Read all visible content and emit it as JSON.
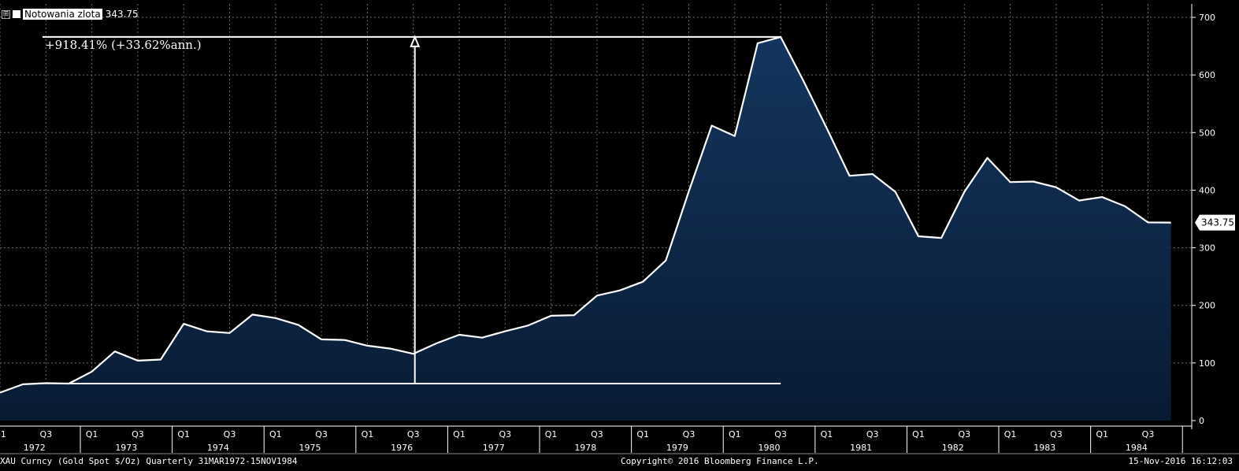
{
  "legend": {
    "toggle": "⊞",
    "series_name": "Notowania zlota",
    "last_value": "343.75"
  },
  "annotation": {
    "change_text": "+918.41% (+33.62%ann.)"
  },
  "footer": {
    "left": "XAU Curncy (Gold Spot  $/Oz)  Quarterly 31MAR1972-15NOV1984",
    "center": "Copyright© 2016 Bloomberg Finance L.P.",
    "right": "15-Nov-2016 16:12:03"
  },
  "colors": {
    "background": "#000000",
    "area_top": "#14355e",
    "area_bottom": "#091b33",
    "line": "#ffffff",
    "grid": "#6b6b6b"
  },
  "chart_data": {
    "type": "area",
    "series": [
      {
        "name": "Notowania zlota",
        "x": [
          "1972Q1",
          "1972Q2",
          "1972Q3",
          "1972Q4",
          "1973Q1",
          "1973Q2",
          "1973Q3",
          "1973Q4",
          "1974Q1",
          "1974Q2",
          "1974Q3",
          "1974Q4",
          "1975Q1",
          "1975Q2",
          "1975Q3",
          "1975Q4",
          "1976Q1",
          "1976Q2",
          "1976Q3",
          "1976Q4",
          "1977Q1",
          "1977Q2",
          "1977Q3",
          "1977Q4",
          "1978Q1",
          "1978Q2",
          "1978Q3",
          "1978Q4",
          "1979Q1",
          "1979Q2",
          "1979Q3",
          "1979Q4",
          "1980Q1",
          "1980Q2",
          "1980Q3",
          "1980Q4",
          "1981Q1",
          "1981Q2",
          "1981Q3",
          "1981Q4",
          "1982Q1",
          "1982Q2",
          "1982Q3",
          "1982Q4",
          "1983Q1",
          "1983Q2",
          "1983Q3",
          "1983Q4",
          "1984Q1",
          "1984Q2",
          "1984Q3",
          "1984Q4"
        ],
        "values": [
          48.5,
          63,
          65,
          64.3,
          85,
          120,
          104,
          106,
          168,
          155,
          152,
          184,
          178,
          166,
          141,
          140,
          130,
          125,
          116,
          134,
          149,
          144,
          155,
          165,
          182,
          183,
          217,
          226,
          241,
          278,
          398,
          512,
          494,
          655,
          666,
          589,
          508,
          425,
          428,
          397,
          320,
          317,
          397,
          456,
          414,
          415,
          405,
          382,
          388,
          372,
          344,
          343.75
        ]
      }
    ],
    "annotations": {
      "start_level": 64.3,
      "peak_level": 666,
      "arrow_at": "1976Q3",
      "text": "+918.41% (+33.62%ann.)"
    },
    "y_ticks": [
      0,
      100,
      200,
      300,
      400,
      500,
      600,
      700
    ],
    "ylim": [
      0,
      700
    ],
    "x_quarter_labels": [
      "Q1",
      "Q3"
    ],
    "year_labels": [
      "1972",
      "1973",
      "1974",
      "1975",
      "1976",
      "1977",
      "1978",
      "1979",
      "1980",
      "1981",
      "1982",
      "1983",
      "1984"
    ],
    "last_value_label": "343.75",
    "grid": true
  }
}
